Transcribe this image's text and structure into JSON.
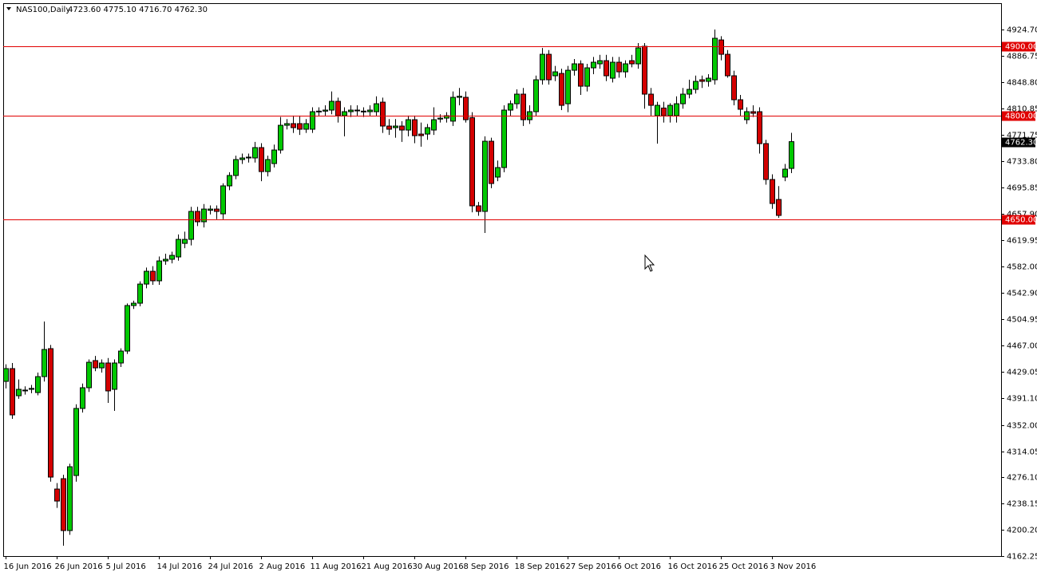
{
  "chart_data": {
    "type": "candlestick",
    "title": "NAS100,Daily",
    "ohlc_label": "4723.60 4775.10 4716.70 4762.30",
    "up_color": "#00c800",
    "down_color": "#d40000",
    "level_color": "#e00000",
    "xlim": [
      -0.375,
      155.875
    ],
    "ylim": [
      4162.25,
      4962.8
    ],
    "xticks": [
      {
        "value": 0,
        "label": "16 Jun 2016"
      },
      {
        "value": 8,
        "label": "26 Jun 2016"
      },
      {
        "value": 16,
        "label": "5 Jul 2016"
      },
      {
        "value": 24,
        "label": "14 Jul 2016"
      },
      {
        "value": 32,
        "label": "24 Jul 2016"
      },
      {
        "value": 40,
        "label": "2 Aug 2016"
      },
      {
        "value": 48,
        "label": "11 Aug 2016"
      },
      {
        "value": 56,
        "label": "21 Aug 2016"
      },
      {
        "value": 64,
        "label": "30 Aug 2016"
      },
      {
        "value": 72,
        "label": "8 Sep 2016"
      },
      {
        "value": 80,
        "label": "18 Sep 2016"
      },
      {
        "value": 88,
        "label": "27 Sep 2016"
      },
      {
        "value": 96,
        "label": "6 Oct 2016"
      },
      {
        "value": 104,
        "label": "16 Oct 2016"
      },
      {
        "value": 112,
        "label": "25 Oct 2016"
      },
      {
        "value": 120,
        "label": "3 Nov 2016"
      }
    ],
    "yticks": [
      {
        "value": 4924.7,
        "label": "4924.70"
      },
      {
        "value": 4886.75,
        "label": "4886.75"
      },
      {
        "value": 4848.8,
        "label": "4848.80"
      },
      {
        "value": 4810.85,
        "label": "4810.85"
      },
      {
        "value": 4771.75,
        "label": "4771.75"
      },
      {
        "value": 4733.8,
        "label": "4733.80"
      },
      {
        "value": 4695.85,
        "label": "4695.85"
      },
      {
        "value": 4657.9,
        "label": "4657.90"
      },
      {
        "value": 4619.95,
        "label": "4619.95"
      },
      {
        "value": 4582,
        "label": "4582.00"
      },
      {
        "value": 4542.9,
        "label": "4542.90"
      },
      {
        "value": 4504.95,
        "label": "4504.95"
      },
      {
        "value": 4467,
        "label": "4467.00"
      },
      {
        "value": 4429.05,
        "label": "4429.05"
      },
      {
        "value": 4391.1,
        "label": "4391.10"
      },
      {
        "value": 4352,
        "label": "4352.00"
      },
      {
        "value": 4314.05,
        "label": "4314.05"
      },
      {
        "value": 4276.1,
        "label": "4276.10"
      },
      {
        "value": 4238.15,
        "label": "4238.15"
      },
      {
        "value": 4200.2,
        "label": "4200.20"
      },
      {
        "value": 4162.25,
        "label": "4162.25"
      }
    ],
    "levels": [
      {
        "value": 4900,
        "label": "4900.00"
      },
      {
        "value": 4800,
        "label": "4800.00"
      },
      {
        "value": 4650,
        "label": "4650.00"
      }
    ],
    "current_price": {
      "value": 4762.3,
      "label": "4762.30"
    },
    "ohlc": [
      [
        4415.2,
        4440,
        4405,
        4433.7
      ],
      [
        4433.7,
        4441.8,
        4360.9,
        4366.7
      ],
      [
        4394.4,
        4418,
        4390,
        4403.7
      ],
      [
        4401.4,
        4408,
        4396,
        4402.6
      ],
      [
        4403.7,
        4410,
        4398,
        4405
      ],
      [
        4399,
        4428,
        4395,
        4422.1
      ],
      [
        4422.1,
        4501.9,
        4415,
        4461.4
      ],
      [
        4462.6,
        4468,
        4270,
        4276.6
      ],
      [
        4259.3,
        4268,
        4232,
        4241.9
      ],
      [
        4274.3,
        4280,
        4177.2,
        4199.2
      ],
      [
        4199.2,
        4296,
        4193,
        4291.6
      ],
      [
        4278.9,
        4382,
        4270,
        4376
      ],
      [
        4376,
        4412,
        4370,
        4406
      ],
      [
        4406,
        4447,
        4400,
        4442.9
      ],
      [
        4445.3,
        4452,
        4430,
        4434.8
      ],
      [
        4434.8,
        4447,
        4428,
        4441.8
      ],
      [
        4441.8,
        4449,
        4384,
        4401.4
      ],
      [
        4403.7,
        4447,
        4372.5,
        4441.8
      ],
      [
        4441.8,
        4463,
        4436,
        4459.1
      ],
      [
        4459.1,
        4528,
        4455,
        4525
      ],
      [
        4525,
        4532,
        4520,
        4528.4
      ],
      [
        4528.4,
        4560,
        4524,
        4556.1
      ],
      [
        4556.1,
        4580,
        4550,
        4574.6
      ],
      [
        4574.6,
        4582,
        4555,
        4560.8
      ],
      [
        4560.8,
        4596,
        4555,
        4589.6
      ],
      [
        4589.6,
        4600,
        4584,
        4592
      ],
      [
        4592,
        4603,
        4586,
        4597.7
      ],
      [
        4595.4,
        4628,
        4590,
        4620.8
      ],
      [
        4615,
        4632,
        4608,
        4620.8
      ],
      [
        4620.8,
        4668,
        4612,
        4661.3
      ],
      [
        4661.3,
        4668,
        4640,
        4646.3
      ],
      [
        4646.3,
        4672,
        4638,
        4664.7
      ],
      [
        4663,
        4670,
        4657,
        4664.7
      ],
      [
        4664.7,
        4670,
        4650,
        4661.3
      ],
      [
        4657.8,
        4702,
        4650,
        4698.3
      ],
      [
        4698.3,
        4718,
        4692,
        4713.3
      ],
      [
        4713.3,
        4742,
        4708,
        4736.4
      ],
      [
        4736.4,
        4745,
        4730,
        4738.7
      ],
      [
        4738.7,
        4745,
        4732,
        4739.9
      ],
      [
        4738.7,
        4762,
        4732,
        4753.7
      ],
      [
        4753.7,
        4760,
        4705,
        4719
      ],
      [
        4719,
        4742,
        4712,
        4736.4
      ],
      [
        4730.6,
        4758,
        4725,
        4750.2
      ],
      [
        4750.2,
        4798,
        4745,
        4786
      ],
      [
        4786,
        4795,
        4780,
        4788.4
      ],
      [
        4788.4,
        4800,
        4775,
        4782.6
      ],
      [
        4788.4,
        4800,
        4772,
        4780.3
      ],
      [
        4780.3,
        4795,
        4775,
        4788.4
      ],
      [
        4780.3,
        4812,
        4775,
        4805.7
      ],
      [
        4805.7,
        4812,
        4800,
        4806.5
      ],
      [
        4806.5,
        4815,
        4800,
        4808
      ],
      [
        4808,
        4835,
        4802,
        4820.7
      ],
      [
        4820.7,
        4826,
        4790,
        4799.9
      ],
      [
        4799.9,
        4812,
        4770,
        4805.7
      ],
      [
        4805.7,
        4815,
        4798,
        4808
      ],
      [
        4807,
        4815,
        4800,
        4808
      ],
      [
        4805.7,
        4812,
        4798,
        4806.5
      ],
      [
        4805.7,
        4815,
        4800,
        4808
      ],
      [
        4805.7,
        4828,
        4800,
        4817.2
      ],
      [
        4819.5,
        4826,
        4775,
        4784.9
      ],
      [
        4784.9,
        4795,
        4772,
        4780.3
      ],
      [
        4782.6,
        4795,
        4768,
        4784.9
      ],
      [
        4784.9,
        4792,
        4762,
        4779.1
      ],
      [
        4779.1,
        4800,
        4770,
        4794.1
      ],
      [
        4794.1,
        4800,
        4760,
        4771
      ],
      [
        4773.3,
        4790,
        4755,
        4771
      ],
      [
        4773.3,
        4788,
        4765,
        4782.6
      ],
      [
        4779.1,
        4812,
        4772,
        4794.1
      ],
      [
        4795,
        4802,
        4790,
        4796.4
      ],
      [
        4796.4,
        4805,
        4790,
        4799.9
      ],
      [
        4792,
        4835,
        4785,
        4826.5
      ],
      [
        4826.5,
        4840,
        4815,
        4828
      ],
      [
        4826.5,
        4835,
        4790,
        4794.1
      ],
      [
        4797,
        4805,
        4660,
        4669.4
      ],
      [
        4669.4,
        4675,
        4655,
        4661.3
      ],
      [
        4661.3,
        4770,
        4630.1,
        4762.9
      ],
      [
        4762.9,
        4768,
        4695,
        4701.7
      ],
      [
        4711,
        4735,
        4705,
        4724.8
      ],
      [
        4724.8,
        4815,
        4718,
        4808
      ],
      [
        4808,
        4822,
        4800,
        4817.2
      ],
      [
        4817.2,
        4838,
        4810,
        4831.1
      ],
      [
        4831.1,
        4840,
        4785,
        4794.1
      ],
      [
        4794.1,
        4815,
        4788,
        4805.7
      ],
      [
        4805.7,
        4858,
        4800,
        4851.9
      ],
      [
        4851.9,
        4898,
        4845,
        4888.8
      ],
      [
        4888.8,
        4895,
        4845,
        4851.9
      ],
      [
        4857.7,
        4872,
        4850,
        4863.4
      ],
      [
        4861.1,
        4868,
        4808,
        4814.9
      ],
      [
        4817.2,
        4872,
        4805,
        4865.7
      ],
      [
        4865.7,
        4882,
        4858,
        4875
      ],
      [
        4875,
        4880,
        4830,
        4842.6
      ],
      [
        4842.6,
        4875,
        4835,
        4869.2
      ],
      [
        4869.2,
        4885,
        4860,
        4877.3
      ],
      [
        4875,
        4888,
        4868,
        4879.6
      ],
      [
        4879.6,
        4888,
        4850,
        4857.7
      ],
      [
        4854.2,
        4885,
        4848,
        4877.3
      ],
      [
        4877.3,
        4885,
        4855,
        4863.4
      ],
      [
        4863.4,
        4880,
        4855,
        4875
      ],
      [
        4879.6,
        4888,
        4870,
        4875
      ],
      [
        4875,
        4905,
        4868,
        4898.1
      ],
      [
        4900.4,
        4905,
        4810,
        4831.1
      ],
      [
        4831.1,
        4840,
        4800,
        4814.9
      ],
      [
        4799.9,
        4820,
        4759.5,
        4814.9
      ],
      [
        4811,
        4820,
        4790,
        4799.9
      ],
      [
        4799.9,
        4818,
        4790,
        4814.9
      ],
      [
        4799.9,
        4828,
        4790,
        4817.2
      ],
      [
        4817.2,
        4840,
        4810,
        4831.1
      ],
      [
        4831.1,
        4852,
        4825,
        4838
      ],
      [
        4838,
        4858,
        4832,
        4849.6
      ],
      [
        4851.9,
        4858,
        4840,
        4849.6
      ],
      [
        4849.6,
        4860,
        4842,
        4854.2
      ],
      [
        4851.9,
        4924.7,
        4845,
        4912
      ],
      [
        4909.6,
        4915,
        4880,
        4888.8
      ],
      [
        4888.8,
        4895,
        4855,
        4857.7
      ],
      [
        4857.7,
        4865,
        4815,
        4823
      ],
      [
        4823,
        4830,
        4800,
        4809.2
      ],
      [
        4794.1,
        4812,
        4788,
        4805.7
      ],
      [
        4805.7,
        4815,
        4798,
        4803.4
      ],
      [
        4805.7,
        4812,
        4745,
        4759.5
      ],
      [
        4759.5,
        4765,
        4700,
        4707.5
      ],
      [
        4707.5,
        4715,
        4665,
        4672.8
      ],
      [
        4678.6,
        4698,
        4652,
        4655.5
      ],
      [
        4711,
        4730,
        4705,
        4722.5
      ],
      [
        4723.6,
        4775.1,
        4716.7,
        4762.3
      ]
    ]
  }
}
